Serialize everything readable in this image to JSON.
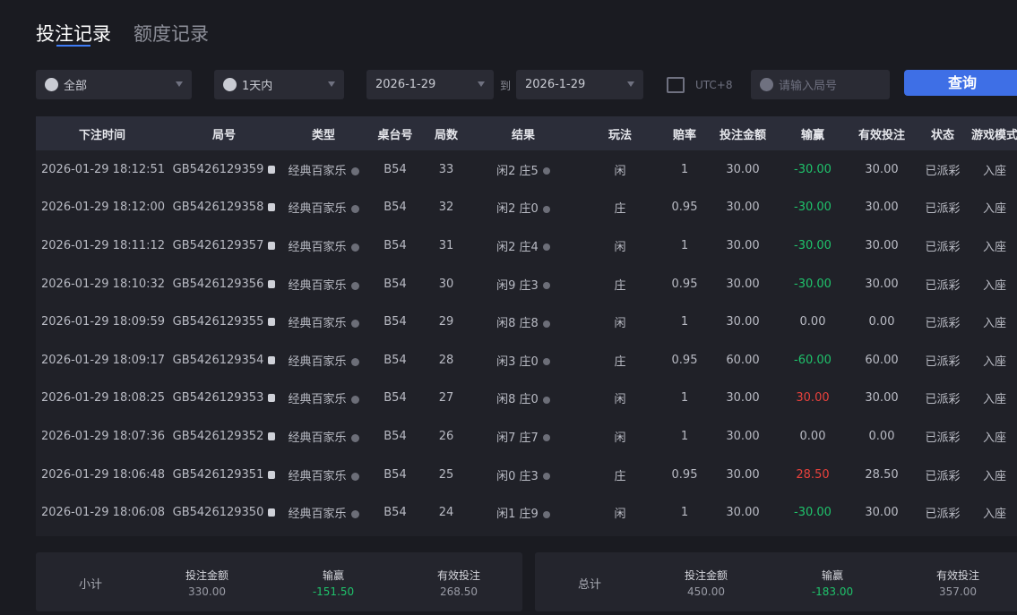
{
  "tabs": [
    "投注记录",
    "额度记录"
  ],
  "filters": {
    "type": "全部",
    "period": "1天内",
    "date_from": "2026-1-29",
    "to": "到",
    "date_to": "2026-1-29",
    "timezone": "UTC+8",
    "round_placeholder": "请输入局号",
    "query": "查询"
  },
  "table": {
    "headers": [
      "下注时间",
      "局号",
      "类型",
      "桌台号",
      "局数",
      "结果",
      "玩法",
      "赔率",
      "投注金额",
      "输赢",
      "有效投注",
      "状态",
      "游戏模式"
    ],
    "rows": [
      [
        "2026-01-29 18:12:51",
        "GB5426129359",
        "经典百家乐",
        "B54",
        "33",
        "闲2 庄5",
        "闲",
        "1",
        "30.00",
        "-30.00",
        "30.00",
        "已派彩",
        "入座"
      ],
      [
        "2026-01-29 18:12:00",
        "GB5426129358",
        "经典百家乐",
        "B54",
        "32",
        "闲2 庄0",
        "庄",
        "0.95",
        "30.00",
        "-30.00",
        "30.00",
        "已派彩",
        "入座"
      ],
      [
        "2026-01-29 18:11:12",
        "GB5426129357",
        "经典百家乐",
        "B54",
        "31",
        "闲2 庄4",
        "闲",
        "1",
        "30.00",
        "-30.00",
        "30.00",
        "已派彩",
        "入座"
      ],
      [
        "2026-01-29 18:10:32",
        "GB5426129356",
        "经典百家乐",
        "B54",
        "30",
        "闲9 庄3",
        "庄",
        "0.95",
        "30.00",
        "-30.00",
        "30.00",
        "已派彩",
        "入座"
      ],
      [
        "2026-01-29 18:09:59",
        "GB5426129355",
        "经典百家乐",
        "B54",
        "29",
        "闲8 庄8",
        "闲",
        "1",
        "30.00",
        "0.00",
        "0.00",
        "已派彩",
        "入座"
      ],
      [
        "2026-01-29 18:09:17",
        "GB5426129354",
        "经典百家乐",
        "B54",
        "28",
        "闲3 庄0",
        "庄",
        "0.95",
        "60.00",
        "-60.00",
        "60.00",
        "已派彩",
        "入座"
      ],
      [
        "2026-01-29 18:08:25",
        "GB5426129353",
        "经典百家乐",
        "B54",
        "27",
        "闲8 庄0",
        "闲",
        "1",
        "30.00",
        "30.00",
        "30.00",
        "已派彩",
        "入座"
      ],
      [
        "2026-01-29 18:07:36",
        "GB5426129352",
        "经典百家乐",
        "B54",
        "26",
        "闲7 庄7",
        "闲",
        "1",
        "30.00",
        "0.00",
        "0.00",
        "已派彩",
        "入座"
      ],
      [
        "2026-01-29 18:06:48",
        "GB5426129351",
        "经典百家乐",
        "B54",
        "25",
        "闲0 庄3",
        "庄",
        "0.95",
        "30.00",
        "28.50",
        "28.50",
        "已派彩",
        "入座"
      ],
      [
        "2026-01-29 18:06:08",
        "GB5426129350",
        "经典百家乐",
        "B54",
        "24",
        "闲1 庄9",
        "闲",
        "1",
        "30.00",
        "-30.00",
        "30.00",
        "已派彩",
        "入座"
      ]
    ]
  },
  "summaries": [
    {
      "label": "小计",
      "items": [
        {
          "label": "投注金额",
          "value": "330.00"
        },
        {
          "label": "输赢",
          "value": "-151.50"
        },
        {
          "label": "有效投注",
          "value": "268.50"
        }
      ]
    },
    {
      "label": "总计",
      "items": [
        {
          "label": "投注金额",
          "value": "450.00"
        },
        {
          "label": "输赢",
          "value": "-183.00"
        },
        {
          "label": "有效投注",
          "value": "357.00"
        }
      ]
    }
  ]
}
